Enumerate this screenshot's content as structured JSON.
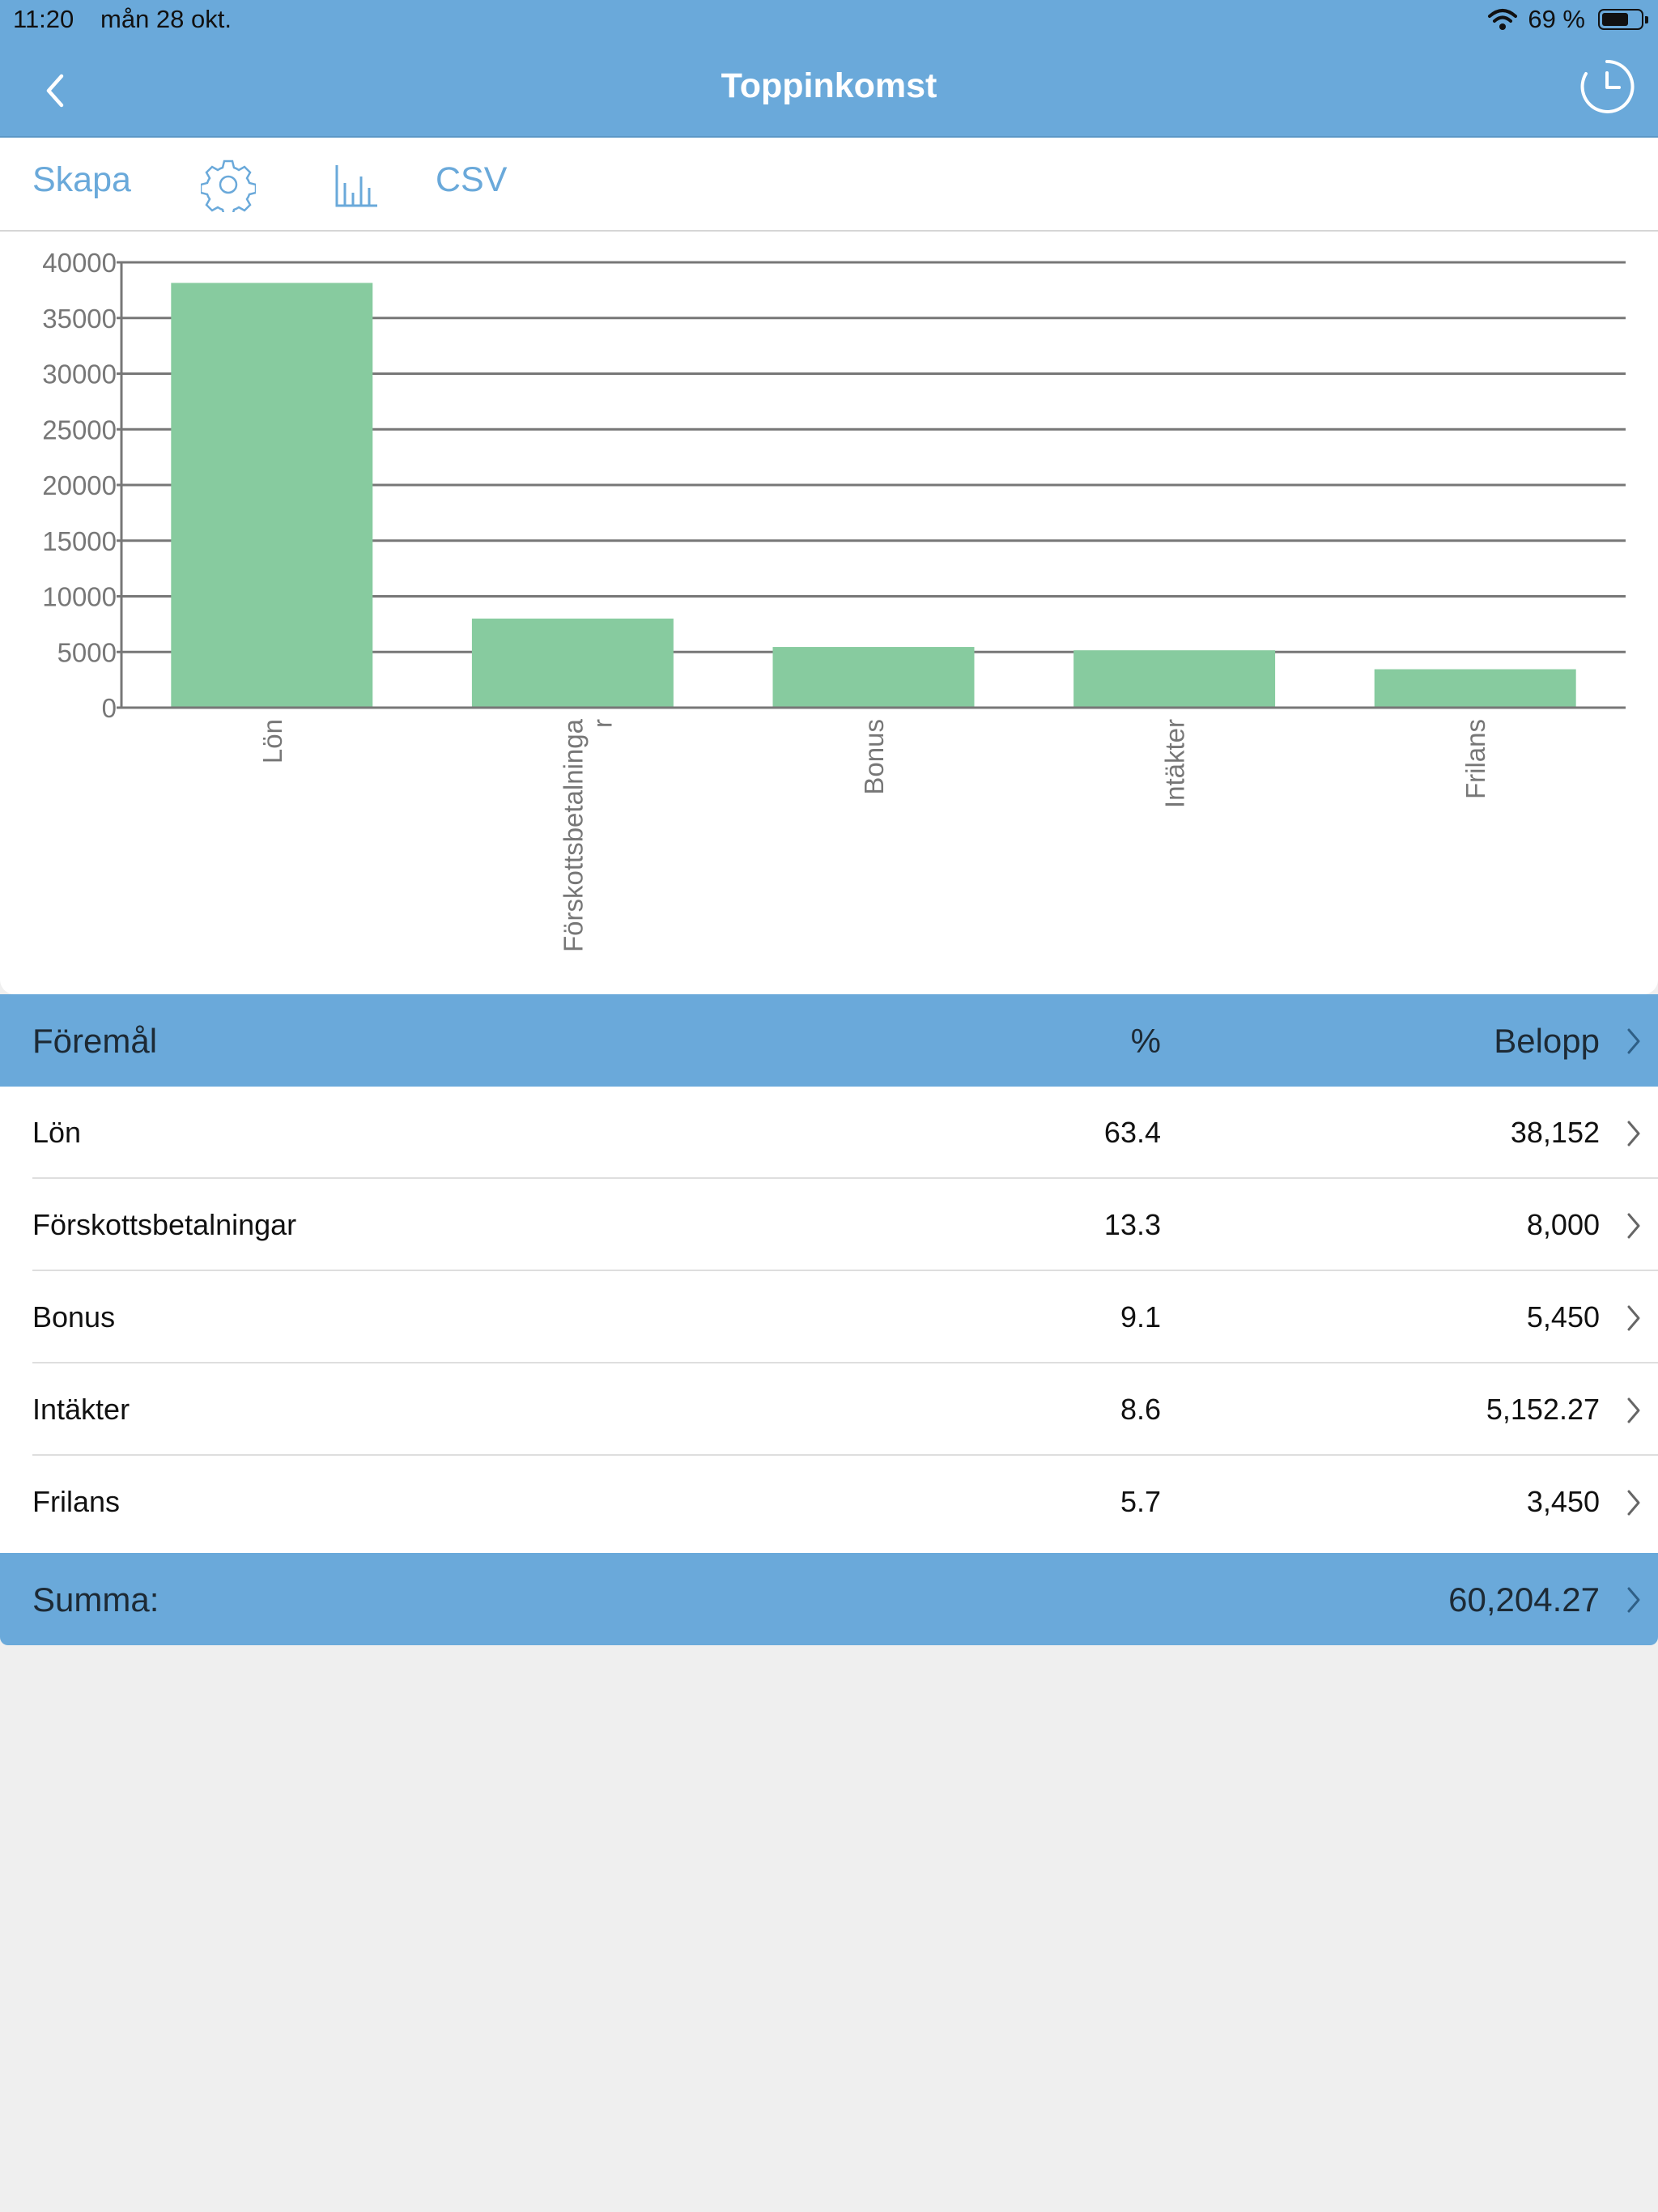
{
  "status_bar": {
    "time": "11:20",
    "date": "mån 28 okt.",
    "battery_text": "69 %",
    "battery_level": 0.69
  },
  "nav": {
    "title": "Toppinkomst",
    "back_icon": "chevron-left-icon",
    "history_icon": "clock-icon"
  },
  "toolbar": {
    "create_label": "Skapa",
    "settings_icon": "gear-icon",
    "chart_icon": "bar-chart-icon",
    "csv_label": "CSV"
  },
  "chart_data": {
    "type": "bar",
    "categories": [
      "Lön",
      "Förskottsbetalningar",
      "Bonus",
      "Intäkter",
      "Frilans"
    ],
    "values": [
      38152,
      8000,
      5450,
      5152.27,
      3450
    ],
    "ylim": [
      0,
      40000
    ],
    "yticks": [
      "0",
      "5000",
      "10000",
      "15000",
      "20000",
      "25000",
      "30000",
      "35000",
      "40000"
    ],
    "xlabels": [
      "Lön",
      "Förskottsbetalninga",
      "Bonus",
      "Intäkter",
      "Frilans"
    ],
    "xlabel_wrap": {
      "index": 1,
      "text": "r"
    },
    "grid": true,
    "bar_color": "#87cb9f"
  },
  "table": {
    "header": {
      "name": "Föremål",
      "pct": "%",
      "amount": "Belopp"
    },
    "rows": [
      {
        "name": "Lön",
        "pct": "63.4",
        "amount": "38,152"
      },
      {
        "name": "Förskottsbetalningar",
        "pct": "13.3",
        "amount": "8,000"
      },
      {
        "name": "Bonus",
        "pct": "9.1",
        "amount": "5,450"
      },
      {
        "name": "Intäkter",
        "pct": "8.6",
        "amount": "5,152.27"
      },
      {
        "name": "Frilans",
        "pct": "5.7",
        "amount": "3,450"
      }
    ],
    "total": {
      "label": "Summa:",
      "amount": "60,204.27"
    }
  },
  "colors": {
    "accent": "#6aa9da",
    "bar": "#87cb9f",
    "background": "#efefef"
  }
}
